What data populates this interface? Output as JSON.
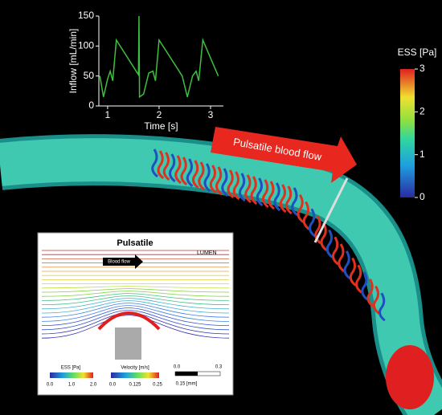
{
  "chart_data": {
    "type": "line",
    "xlabel": "Time [s]",
    "ylabel": "Inflow [mL/min]",
    "x": [
      0.85,
      0.92,
      1.0,
      1.05,
      1.1,
      1.17,
      1.6,
      1.61,
      1.62,
      1.7,
      1.8,
      1.88,
      1.93,
      2.0,
      2.45,
      2.55,
      2.65,
      2.72,
      2.77,
      2.85,
      3.15
    ],
    "series": [
      {
        "color": "#3fbf3f",
        "values": [
          50,
          15,
          45,
          58,
          42,
          110,
          52,
          150,
          15,
          20,
          55,
          58,
          42,
          110,
          50,
          15,
          50,
          58,
          42,
          110,
          50
        ]
      }
    ],
    "xlim": [
      0.83,
      3.25
    ],
    "ylim": [
      0,
      150
    ],
    "xticks": [
      1,
      2,
      3
    ],
    "yticks": [
      0,
      50,
      100,
      150
    ]
  },
  "colorbar": {
    "title": "ESS [Pa]",
    "lim": [
      0,
      3
    ],
    "ticks": [
      0,
      1,
      2,
      3
    ]
  },
  "arrow_label": "Pulsatile blood flow",
  "inset": {
    "title": "Pulsatile",
    "lumen": "LUMEN",
    "flow_label": "Blood flow",
    "ess_title": "ESS [Pa]",
    "ess_ticks": [
      "0.0",
      "1.0",
      "2.0"
    ],
    "velocity_title": "Velocity [m/s]",
    "velocity_ticks": [
      "0.0",
      "0.125",
      "0.25"
    ],
    "scale_ticks": [
      "0.0",
      "0.3"
    ],
    "scale_label": "0.15 [mm]"
  }
}
